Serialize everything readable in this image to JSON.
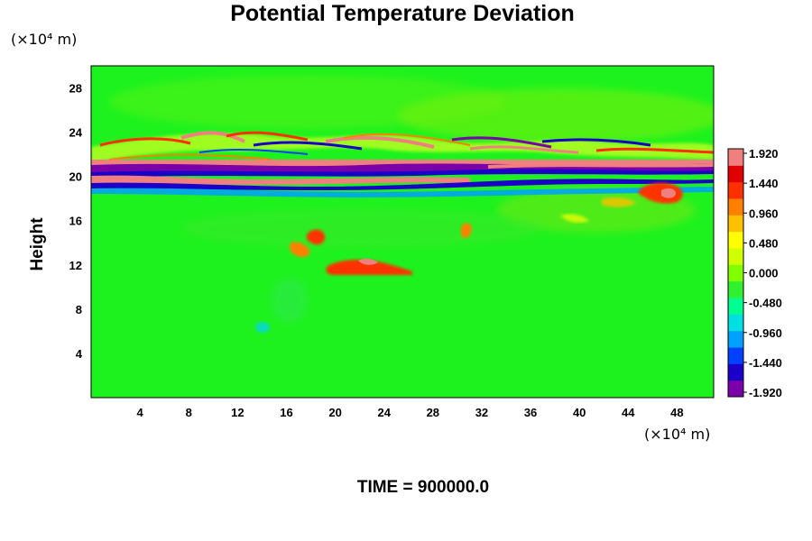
{
  "chart_data": {
    "type": "heatmap",
    "title": "Potential Temperature Deviation",
    "ylabel": "Height",
    "xlabel": "",
    "x_unit_label": "(×10⁴ m)",
    "y_unit_label": "(×10⁴ m)",
    "footer": "TIME = 900000.0",
    "xlim": [
      0,
      51
    ],
    "ylim": [
      0,
      30
    ],
    "x_ticks": [
      4,
      8,
      12,
      16,
      20,
      24,
      28,
      32,
      36,
      40,
      44,
      48
    ],
    "y_ticks": [
      4,
      8,
      12,
      16,
      20,
      24,
      28
    ],
    "colorbar": {
      "min": -1.92,
      "max": 1.92,
      "labels": [
        "1.920",
        "1.440",
        "0.960",
        "0.480",
        "0.000",
        "-0.480",
        "-0.960",
        "-1.440",
        "-1.920"
      ],
      "colors": [
        "#7a00a8",
        "#1a00c8",
        "#0040ff",
        "#00a0ff",
        "#00e0e0",
        "#00ff90",
        "#30f030",
        "#80ff00",
        "#d0ff00",
        "#ffff00",
        "#ffc000",
        "#ff8000",
        "#ff3000",
        "#e00000",
        "#f08080"
      ]
    },
    "features": [
      {
        "label": "strong positive/negative banding",
        "height_range": [
          19,
          23
        ]
      },
      {
        "label": "positive patches",
        "x_range": [
          17,
          26
        ],
        "height_range": [
          11,
          15
        ]
      },
      {
        "label": "positive patch",
        "x_range": [
          45,
          50
        ],
        "height_range": [
          17,
          19
        ]
      }
    ]
  }
}
